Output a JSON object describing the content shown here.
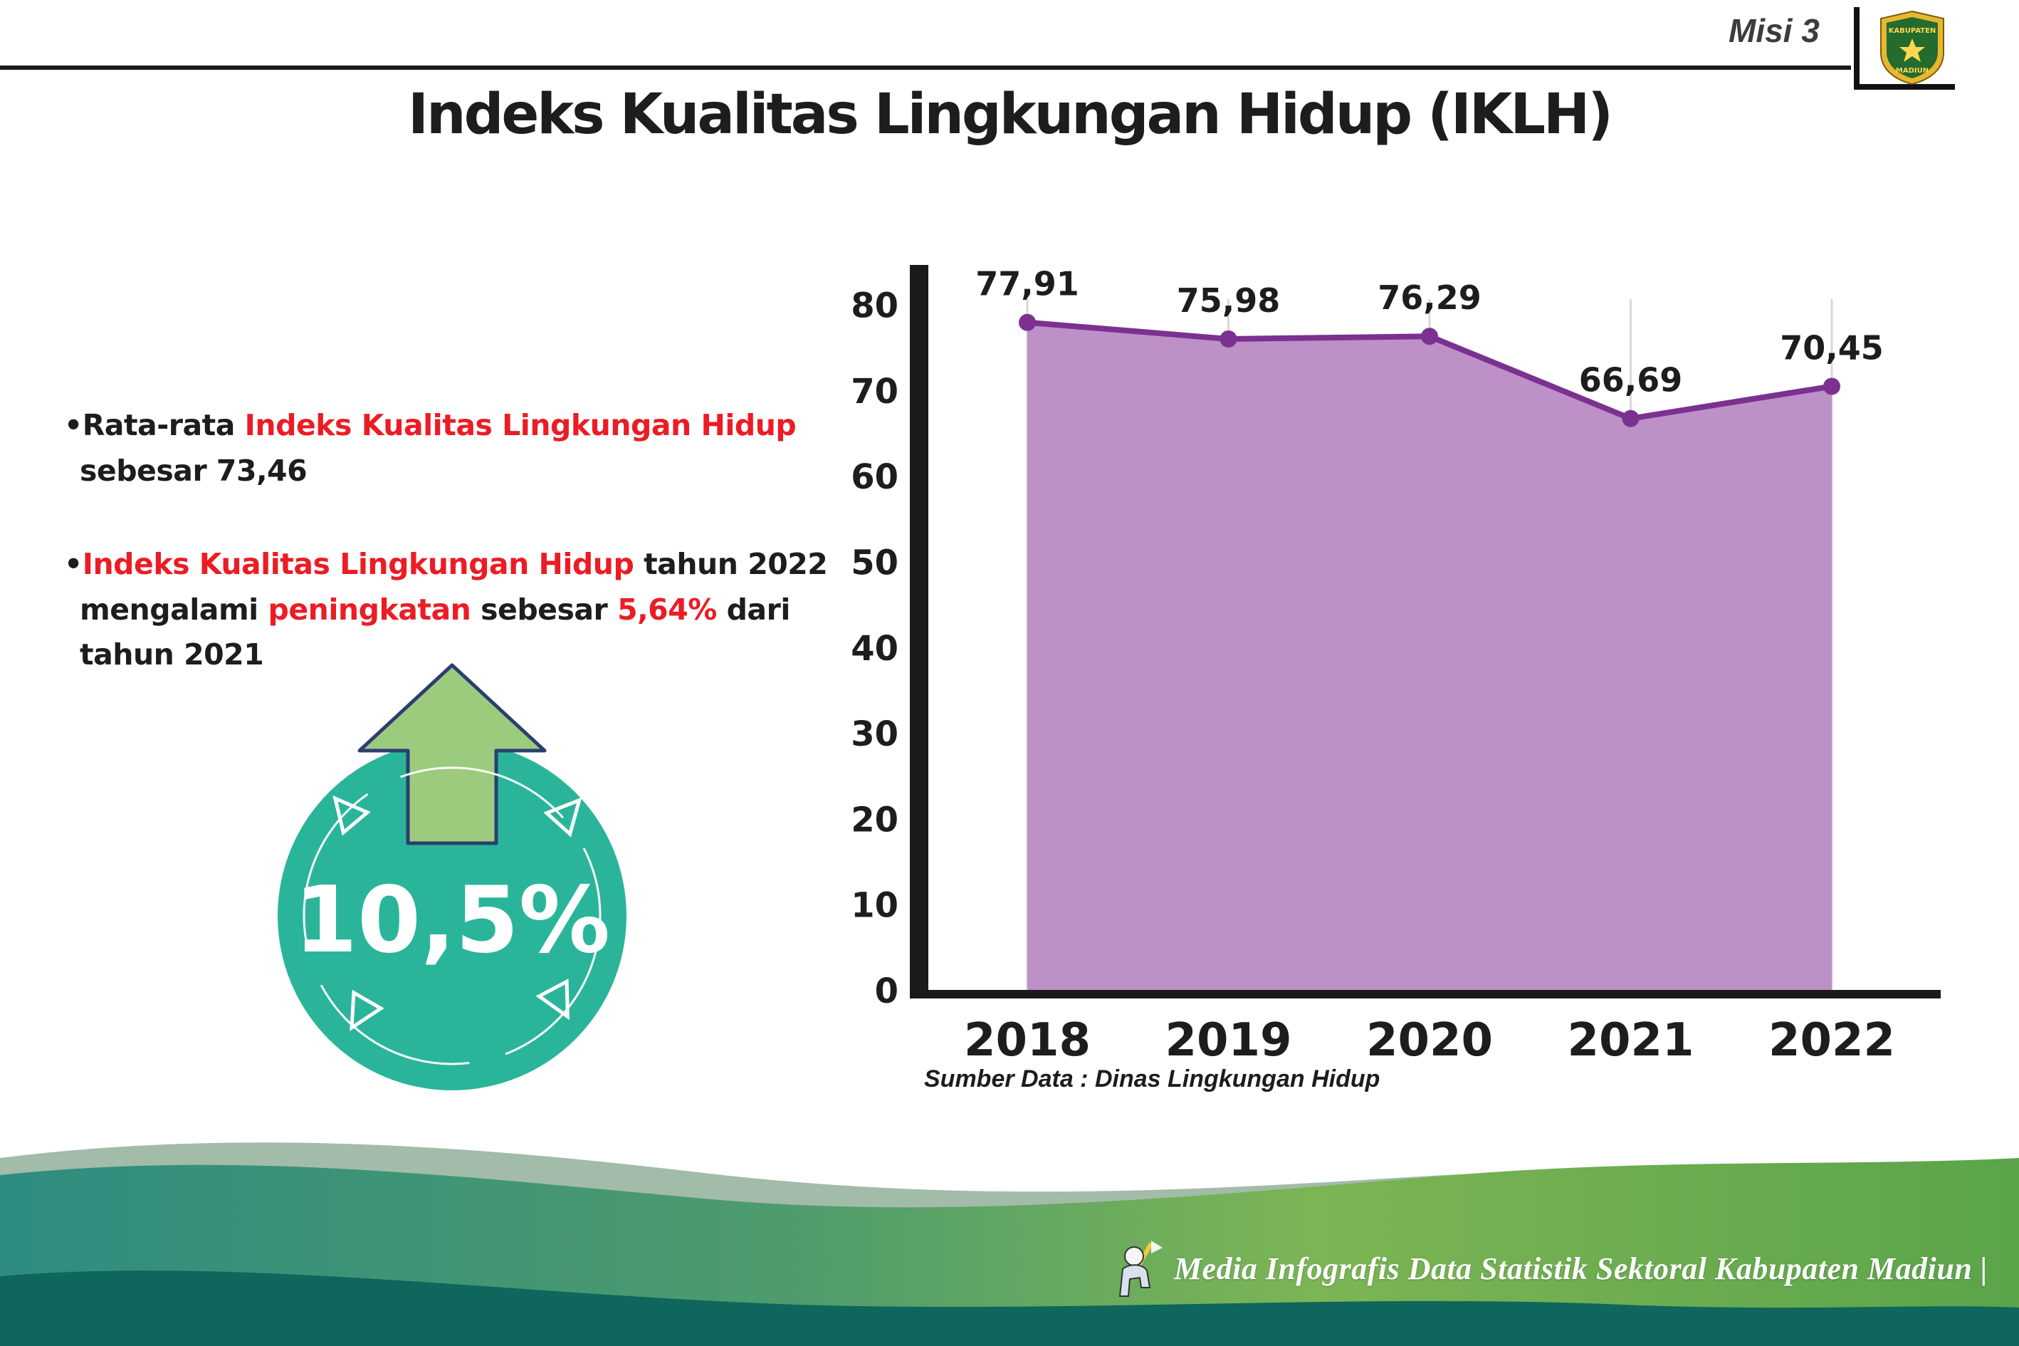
{
  "header": {
    "misi": "Misi 3",
    "title": "Indeks Kualitas Lingkungan Hidup (IKLH)",
    "logo": {
      "line1": "KABUPATEN",
      "line2": "MADIUN"
    }
  },
  "bullets": {
    "marker": "•",
    "b1": {
      "s1": "Rata-rata ",
      "s2": "Indeks Kualitas Lingkungan Hidup",
      "s3": "sebesar 73,46"
    },
    "b2": {
      "s1": "Indeks Kualitas Lingkungan Hidup",
      "s2": " tahun 2022",
      "s3": "mengalami ",
      "s4": "peningkatan",
      "s5": " sebesar ",
      "s6": "5,64%",
      "s7": " dari",
      "s8": "tahun 2021"
    }
  },
  "badge": {
    "value": "10,5%"
  },
  "chart_data": {
    "type": "area",
    "title": "Indeks Kualitas Lingkungan Hidup (IKLH)",
    "categories": [
      "2018",
      "2019",
      "2020",
      "2021",
      "2022"
    ],
    "values": [
      77.91,
      75.98,
      76.29,
      66.69,
      70.45
    ],
    "value_labels": [
      "77,91",
      "75,98",
      "76,29",
      "66,69",
      "70,45"
    ],
    "yticks": [
      0,
      10,
      20,
      30,
      40,
      50,
      60,
      70,
      80
    ],
    "ylim": [
      0,
      80
    ],
    "grid": "vertical",
    "legend": "none",
    "colors": {
      "area": "#bd90c8",
      "line": "#7b3190",
      "point": "#7b3190",
      "axis": "#1a1a1a",
      "grid": "#d8d8d8",
      "label": "#1d1d1b"
    },
    "source": "Sumber Data : Dinas Lingkungan Hidup"
  },
  "footer": {
    "credit": "Media Infografis Data Statistik Sektoral Kabupaten Madiun |"
  },
  "theme": {
    "red": "#ec1c24",
    "badge_teal": "#2ab59a",
    "arrow_green": "#9ccb7e",
    "footer_dark": "#0f665d"
  }
}
